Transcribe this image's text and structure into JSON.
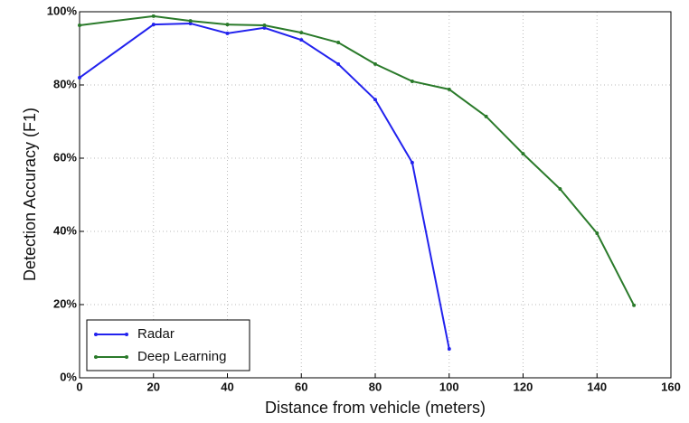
{
  "chart_data": {
    "type": "line",
    "xlabel": "Distance from vehicle (meters)",
    "ylabel": "Detection Accuracy (F1)",
    "xlim": [
      0,
      160
    ],
    "xticks": [
      0,
      20,
      40,
      60,
      80,
      100,
      120,
      140,
      160
    ],
    "ylim": [
      0,
      100
    ],
    "yticks": [
      {
        "value": 0,
        "label": "0%"
      },
      {
        "value": 20,
        "label": "20%"
      },
      {
        "value": 40,
        "label": "40%"
      },
      {
        "value": 60,
        "label": "60%"
      },
      {
        "value": 80,
        "label": "80%"
      },
      {
        "value": 100,
        "label": "100%"
      }
    ],
    "grid": true,
    "legend": "lower left",
    "series": [
      {
        "name": "Radar",
        "color": "#2222ee",
        "x": [
          0,
          20,
          30,
          40,
          50,
          60,
          70,
          80,
          90,
          100
        ],
        "values": [
          82,
          96.5,
          96.8,
          94.1,
          95.6,
          92.3,
          85.7,
          76,
          58.8,
          7.9
        ]
      },
      {
        "name": "Deep Learning",
        "color": "#2a7a2a",
        "x": [
          0,
          20,
          30,
          40,
          50,
          60,
          70,
          80,
          90,
          100,
          110,
          120,
          130,
          140,
          150
        ],
        "values": [
          96.3,
          98.8,
          97.5,
          96.5,
          96.3,
          94.3,
          91.6,
          85.7,
          81,
          78.8,
          71.4,
          61.2,
          51.6,
          39.5,
          19.8
        ]
      }
    ]
  }
}
